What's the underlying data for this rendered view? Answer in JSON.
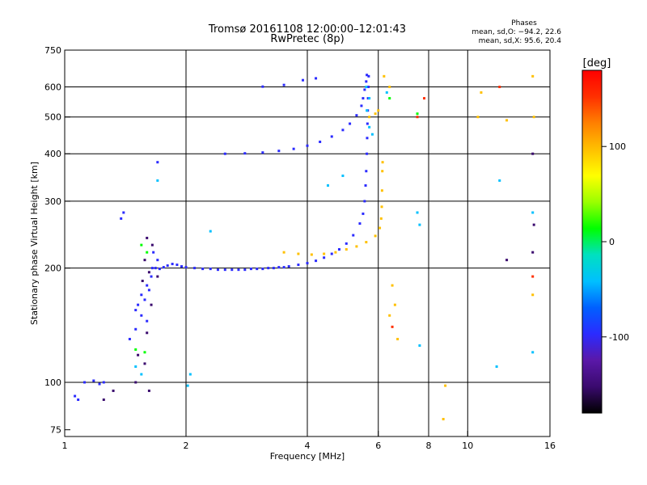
{
  "chart_data": {
    "type": "scatter",
    "title": "Tromsø 20161108 12:00:00–12:01:43",
    "subtitle": "RwPretec (8p)",
    "xlabel": "Frequency [MHz]",
    "ylabel": "Stationary phase Virtual Height [km]",
    "x_scale": "log",
    "y_scale": "log",
    "xlim": [
      1,
      16
    ],
    "ylim": [
      72,
      750
    ],
    "x_ticks": [
      1,
      2,
      4,
      6,
      8,
      10,
      16
    ],
    "y_ticks": [
      75,
      100,
      200,
      300,
      400,
      500,
      600,
      750
    ],
    "grid": true,
    "grid_x": [
      2,
      4,
      6,
      8,
      10
    ],
    "grid_y": [
      100,
      200,
      300,
      400,
      500,
      600
    ],
    "phase_info": {
      "heading": "Phases",
      "line_o": "mean, sd,O: −94.2, 22.6",
      "line_x": "mean, sd,X:  95.6, 20.4"
    },
    "colorbar": {
      "label": "[deg]",
      "range": [
        -180,
        180
      ],
      "ticks": [
        100,
        0,
        -100
      ],
      "colormap": [
        "#000000",
        "#3a0a6e",
        "#5a18a8",
        "#2b2bff",
        "#0060ff",
        "#00c0ff",
        "#00e0c0",
        "#00ff00",
        "#9aff00",
        "#ffff00",
        "#ffc000",
        "#ff8000",
        "#ff3000",
        "#ff0000"
      ]
    },
    "series": [
      {
        "phase_deg": -100,
        "points": [
          [
            1.68,
            200
          ],
          [
            1.72,
            199
          ],
          [
            1.76,
            201
          ],
          [
            1.8,
            203
          ],
          [
            1.85,
            205
          ],
          [
            1.9,
            204
          ],
          [
            1.95,
            202
          ],
          [
            2.0,
            201
          ],
          [
            2.1,
            200
          ],
          [
            2.2,
            199
          ],
          [
            2.3,
            199
          ],
          [
            2.4,
            198
          ],
          [
            2.5,
            198
          ],
          [
            2.6,
            198
          ],
          [
            2.7,
            198
          ],
          [
            2.8,
            198
          ],
          [
            2.9,
            199
          ],
          [
            3.0,
            199
          ],
          [
            3.1,
            199
          ],
          [
            3.2,
            200
          ],
          [
            3.3,
            200
          ],
          [
            3.4,
            201
          ],
          [
            3.5,
            201
          ],
          [
            3.6,
            202
          ],
          [
            3.8,
            204
          ],
          [
            4.0,
            206
          ],
          [
            4.2,
            209
          ],
          [
            4.4,
            213
          ],
          [
            4.6,
            218
          ],
          [
            4.8,
            224
          ],
          [
            5.0,
            232
          ],
          [
            5.2,
            244
          ],
          [
            5.4,
            262
          ],
          [
            5.5,
            278
          ],
          [
            5.55,
            300
          ],
          [
            5.58,
            330
          ],
          [
            5.6,
            360
          ],
          [
            5.62,
            400
          ],
          [
            5.63,
            440
          ],
          [
            5.64,
            480
          ],
          [
            5.65,
            520
          ],
          [
            5.66,
            560
          ],
          [
            5.67,
            600
          ],
          [
            5.68,
            640
          ],
          [
            2.5,
            400
          ],
          [
            2.8,
            401
          ],
          [
            3.1,
            403
          ],
          [
            3.4,
            407
          ],
          [
            3.7,
            412
          ],
          [
            4.0,
            420
          ],
          [
            4.3,
            430
          ],
          [
            4.6,
            444
          ],
          [
            4.9,
            462
          ],
          [
            5.1,
            480
          ],
          [
            5.3,
            505
          ],
          [
            5.45,
            535
          ],
          [
            5.5,
            560
          ],
          [
            5.55,
            590
          ],
          [
            5.6,
            620
          ],
          [
            5.62,
            645
          ],
          [
            3.1,
            601
          ],
          [
            3.5,
            607
          ],
          [
            3.9,
            625
          ],
          [
            4.2,
            632
          ],
          [
            1.5,
            155
          ],
          [
            1.52,
            160
          ],
          [
            1.55,
            170
          ],
          [
            1.58,
            165
          ],
          [
            1.6,
            180
          ],
          [
            1.62,
            175
          ],
          [
            1.64,
            190
          ],
          [
            1.55,
            150
          ],
          [
            1.6,
            145
          ],
          [
            1.45,
            130
          ],
          [
            1.5,
            138
          ],
          [
            1.65,
            200
          ],
          [
            1.7,
            210
          ],
          [
            1.66,
            220
          ],
          [
            1.12,
            100
          ],
          [
            1.18,
            101
          ],
          [
            1.22,
            99
          ],
          [
            1.25,
            100
          ],
          [
            1.08,
            90
          ],
          [
            1.06,
            92
          ],
          [
            1.7,
            380
          ],
          [
            1.4,
            280
          ],
          [
            1.38,
            270
          ]
        ]
      },
      {
        "phase_deg": 100,
        "points": [
          [
            3.5,
            220
          ],
          [
            3.8,
            218
          ],
          [
            4.1,
            217
          ],
          [
            4.4,
            218
          ],
          [
            4.7,
            220
          ],
          [
            5.0,
            224
          ],
          [
            5.3,
            228
          ],
          [
            5.6,
            234
          ],
          [
            5.9,
            243
          ],
          [
            6.05,
            255
          ],
          [
            6.1,
            270
          ],
          [
            6.12,
            290
          ],
          [
            6.13,
            320
          ],
          [
            6.14,
            360
          ],
          [
            6.15,
            380
          ],
          [
            5.7,
            500
          ],
          [
            5.9,
            510
          ],
          [
            6.0,
            520
          ],
          [
            6.2,
            640
          ],
          [
            6.4,
            600
          ],
          [
            6.5,
            180
          ],
          [
            6.6,
            160
          ],
          [
            6.4,
            150
          ],
          [
            6.7,
            130
          ],
          [
            10.6,
            500
          ],
          [
            10.8,
            580
          ],
          [
            12.5,
            490
          ],
          [
            14.5,
            640
          ],
          [
            14.6,
            500
          ],
          [
            14.5,
            170
          ],
          [
            8.8,
            98
          ],
          [
            8.7,
            80
          ]
        ]
      },
      {
        "phase_deg": -40,
        "points": [
          [
            5.6,
            600
          ],
          [
            5.7,
            560
          ],
          [
            5.62,
            520
          ],
          [
            5.8,
            450
          ],
          [
            5.7,
            470
          ],
          [
            6.3,
            580
          ],
          [
            1.7,
            340
          ],
          [
            1.5,
            110
          ],
          [
            1.55,
            105
          ],
          [
            2.05,
            105
          ],
          [
            2.02,
            98
          ],
          [
            2.3,
            250
          ],
          [
            4.9,
            350
          ],
          [
            4.5,
            330
          ],
          [
            7.5,
            280
          ],
          [
            7.6,
            260
          ],
          [
            12.0,
            340
          ],
          [
            14.5,
            280
          ],
          [
            11.8,
            110
          ],
          [
            14.5,
            120
          ],
          [
            7.6,
            125
          ]
        ]
      },
      {
        "phase_deg": 20,
        "points": [
          [
            1.55,
            230
          ],
          [
            1.6,
            220
          ],
          [
            1.58,
            120
          ],
          [
            1.5,
            122
          ],
          [
            7.5,
            510
          ],
          [
            6.4,
            560
          ]
        ]
      },
      {
        "phase_deg": -150,
        "points": [
          [
            1.6,
            240
          ],
          [
            1.65,
            230
          ],
          [
            1.58,
            210
          ],
          [
            1.62,
            195
          ],
          [
            1.7,
            190
          ],
          [
            1.56,
            185
          ],
          [
            1.64,
            160
          ],
          [
            1.6,
            135
          ],
          [
            1.52,
            118
          ],
          [
            1.58,
            112
          ],
          [
            1.5,
            100
          ],
          [
            1.32,
            95
          ],
          [
            1.25,
            90
          ],
          [
            1.62,
            95
          ],
          [
            14.5,
            220
          ],
          [
            14.6,
            260
          ],
          [
            12.5,
            210
          ],
          [
            14.5,
            400
          ]
        ]
      },
      {
        "phase_deg": 160,
        "points": [
          [
            7.8,
            560
          ],
          [
            7.5,
            500
          ],
          [
            14.5,
            190
          ],
          [
            12.0,
            600
          ],
          [
            6.5,
            140
          ]
        ]
      }
    ]
  }
}
